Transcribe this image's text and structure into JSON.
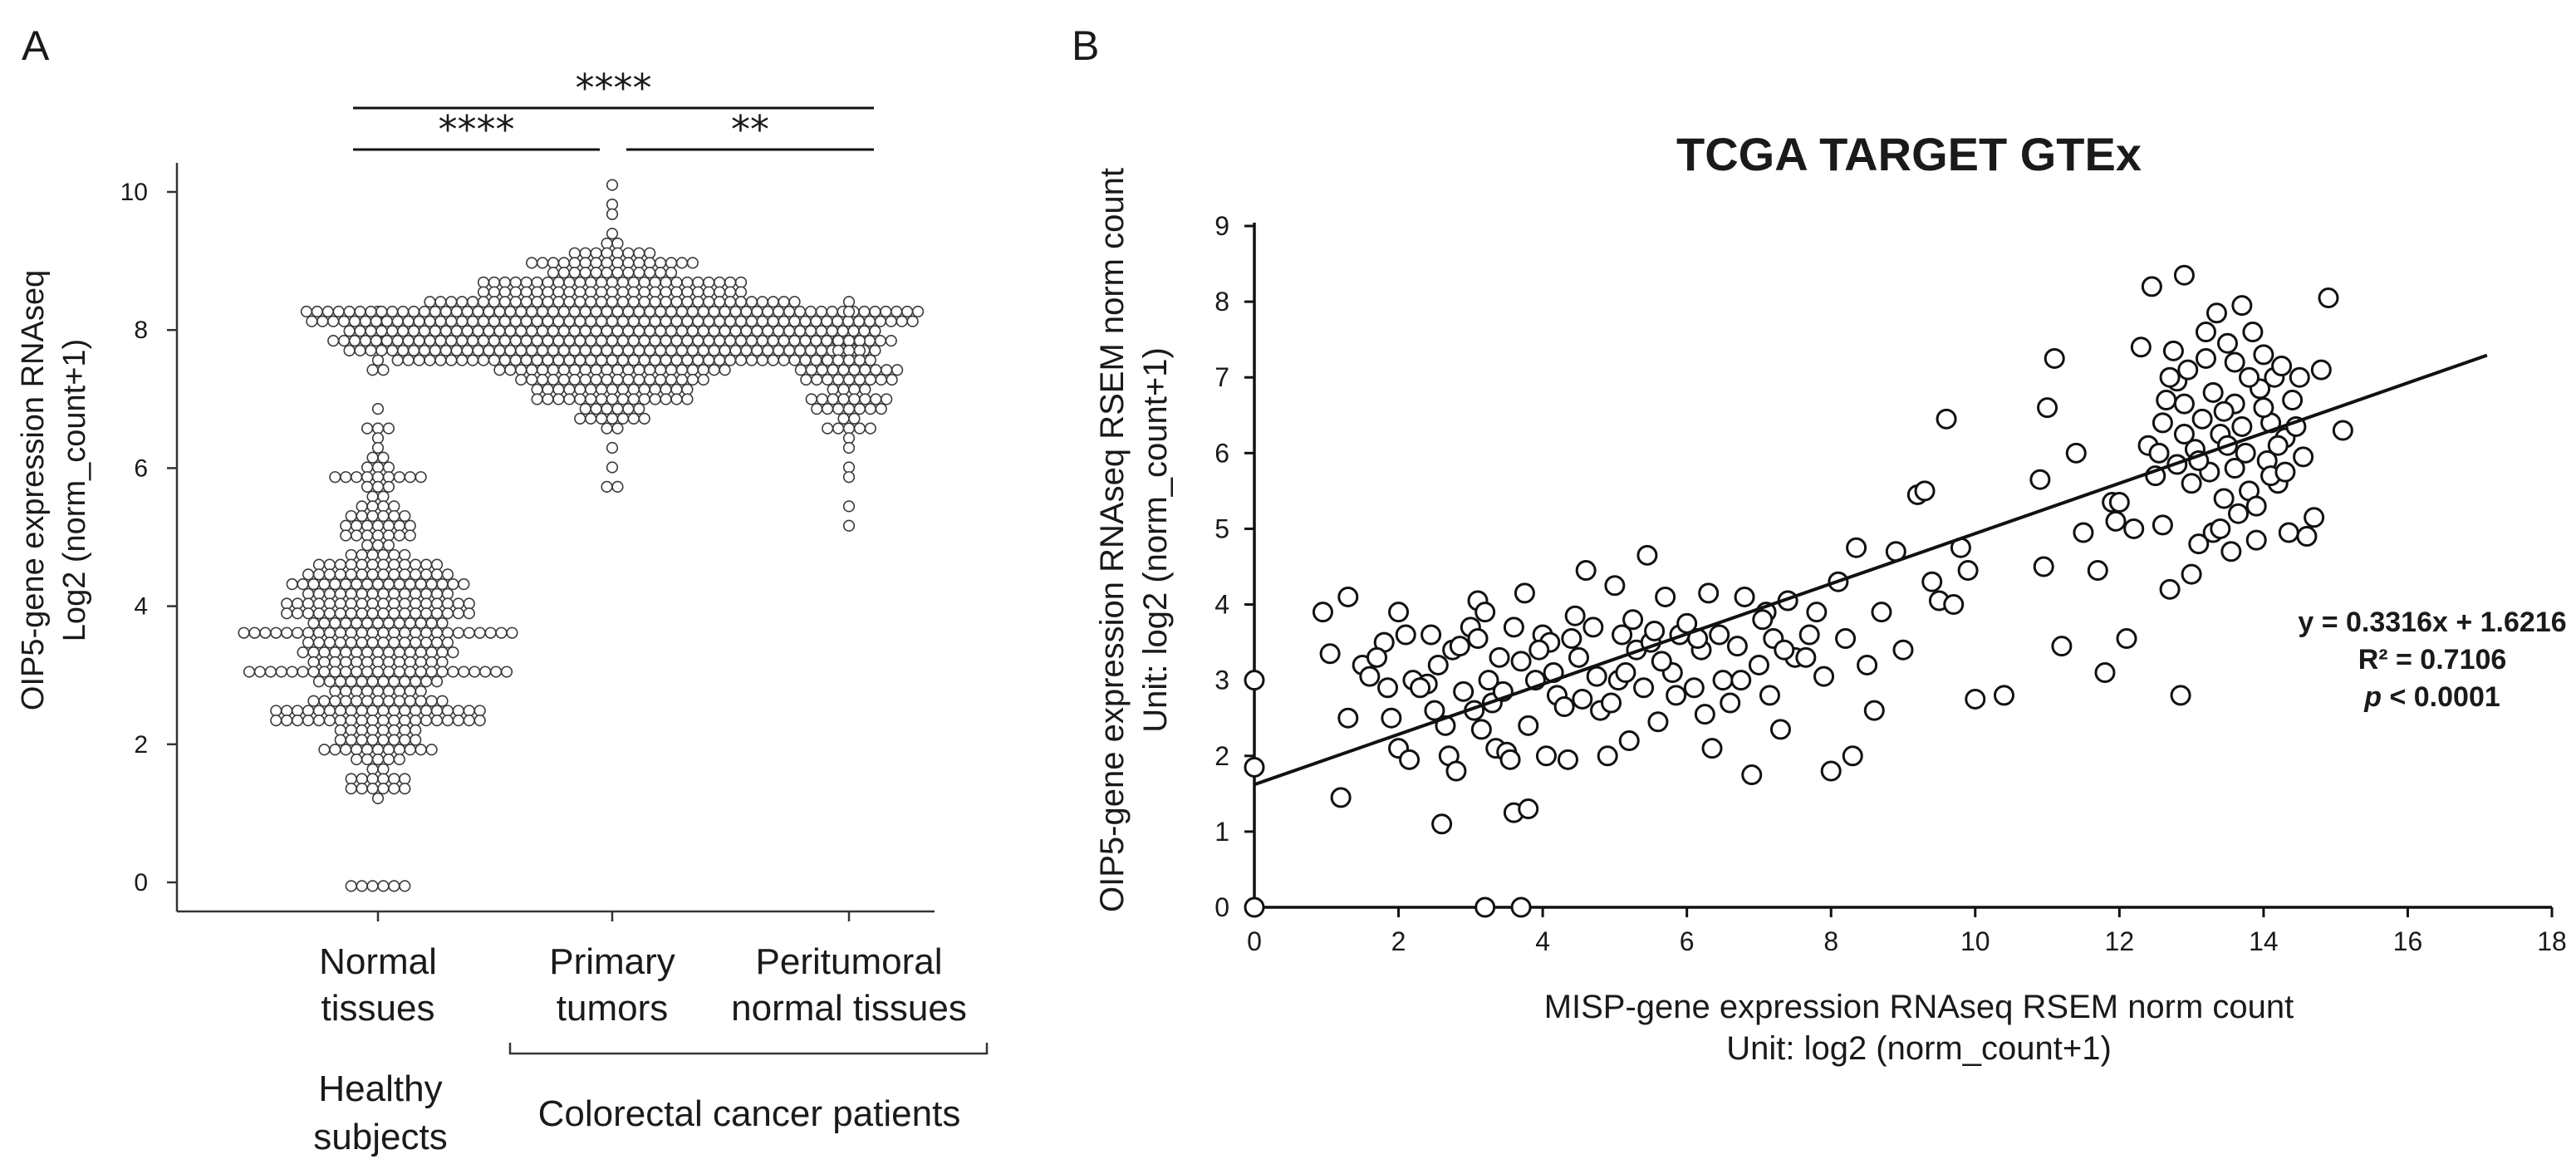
{
  "panels": {
    "a": {
      "letter": "A"
    },
    "b": {
      "letter": "B"
    }
  },
  "chart_data": [
    {
      "type": "scatter",
      "subtype": "beeswarm",
      "ylabel_line1": "OIP5-gene expression RNAseq",
      "ylabel_line2": "Log2 (norm_count+1)",
      "ylim": [
        0,
        10
      ],
      "yticks": [
        "0",
        "2",
        "4",
        "6",
        "8",
        "10"
      ],
      "categories": [
        {
          "line1": "Normal",
          "line2": "tissues"
        },
        {
          "line1": "Primary",
          "line2": "tumors"
        },
        {
          "line1": "Peritumoral",
          "line2": "normal tissues"
        }
      ],
      "groups": [
        {
          "line1": "Healthy",
          "line2": "subjects"
        },
        {
          "label": "Colorectal cancer patients"
        }
      ],
      "significance": [
        {
          "from": 0,
          "to": 1,
          "label": "****"
        },
        {
          "from": 1,
          "to": 2,
          "label": "**"
        },
        {
          "from": 0,
          "to": 2,
          "label": "****"
        }
      ],
      "series": [
        {
          "name": "Normal tissues",
          "min": 0,
          "max": 8.3,
          "median": 3.5,
          "zeros": 6
        },
        {
          "name": "Primary tumors",
          "min": 5.7,
          "max": 10.1,
          "median": 8.0
        },
        {
          "name": "Peritumoral normal tissues",
          "min": 5.1,
          "max": 8.4,
          "median": 7.2
        }
      ]
    },
    {
      "type": "scatter",
      "title": "TCGA TARGET GTEx",
      "xlabel_line1": "MISP-gene expression RNAseq RSEM norm count",
      "xlabel_line2": "Unit: log2 (norm_count+1)",
      "ylabel_line1": "OIP5-gene expression RNAseq RSEM norm count",
      "ylabel_line2": "Unit: log2 (norm_count+1)",
      "xlim": [
        0,
        18
      ],
      "ylim": [
        0,
        9
      ],
      "xticks": [
        "0",
        "2",
        "4",
        "6",
        "8",
        "10",
        "12",
        "14",
        "16",
        "18"
      ],
      "yticks": [
        "0",
        "1",
        "2",
        "3",
        "4",
        "5",
        "6",
        "7",
        "8",
        "9"
      ],
      "trendline": {
        "slope": 0.3316,
        "intercept": 1.6216,
        "x_end": 17.1
      },
      "equation": "y = 0.3316x + 1.6216",
      "r2": "R² = 0.7106",
      "p_label": "p",
      "p_value": " < 0.0001",
      "points": [
        [
          0,
          3.0
        ],
        [
          0,
          1.85
        ],
        [
          0,
          0
        ],
        [
          3.2,
          0
        ],
        [
          3.7,
          0
        ],
        [
          0.95,
          3.9
        ],
        [
          1.3,
          4.1
        ],
        [
          1.05,
          3.35
        ],
        [
          1.2,
          1.45
        ],
        [
          1.3,
          2.5
        ],
        [
          1.5,
          3.2
        ],
        [
          1.6,
          3.05
        ],
        [
          1.8,
          3.5
        ],
        [
          1.7,
          3.3
        ],
        [
          1.9,
          2.5
        ],
        [
          2.0,
          3.9
        ],
        [
          2.1,
          3.6
        ],
        [
          2.2,
          3.0
        ],
        [
          2.0,
          2.1
        ],
        [
          2.15,
          1.95
        ],
        [
          2.4,
          2.95
        ],
        [
          2.5,
          2.6
        ],
        [
          2.6,
          1.1
        ],
        [
          2.55,
          3.2
        ],
        [
          2.7,
          2.0
        ],
        [
          2.75,
          3.4
        ],
        [
          2.9,
          2.85
        ],
        [
          2.8,
          1.8
        ],
        [
          3.0,
          3.7
        ],
        [
          3.1,
          3.55
        ],
        [
          3.1,
          4.05
        ],
        [
          3.2,
          3.9
        ],
        [
          3.25,
          3.0
        ],
        [
          3.3,
          2.7
        ],
        [
          3.35,
          2.1
        ],
        [
          3.4,
          3.3
        ],
        [
          3.5,
          2.05
        ],
        [
          3.55,
          1.95
        ],
        [
          3.6,
          3.7
        ],
        [
          3.7,
          3.25
        ],
        [
          3.6,
          1.25
        ],
        [
          3.8,
          1.3
        ],
        [
          3.8,
          2.4
        ],
        [
          3.9,
          3.0
        ],
        [
          4.0,
          3.6
        ],
        [
          4.1,
          3.5
        ],
        [
          4.2,
          2.8
        ],
        [
          4.3,
          2.65
        ],
        [
          4.35,
          1.95
        ],
        [
          4.45,
          3.85
        ],
        [
          4.5,
          3.3
        ],
        [
          4.6,
          4.45
        ],
        [
          4.7,
          3.7
        ],
        [
          4.8,
          2.6
        ],
        [
          4.9,
          2.0
        ],
        [
          5.0,
          4.25
        ],
        [
          5.1,
          3.6
        ],
        [
          5.2,
          2.2
        ],
        [
          5.3,
          3.4
        ],
        [
          5.4,
          2.9
        ],
        [
          5.45,
          4.65
        ],
        [
          5.5,
          3.5
        ],
        [
          5.6,
          2.45
        ],
        [
          5.7,
          4.1
        ],
        [
          5.8,
          3.1
        ],
        [
          5.9,
          3.6
        ],
        [
          6.0,
          3.75
        ],
        [
          6.1,
          2.9
        ],
        [
          6.2,
          3.4
        ],
        [
          6.3,
          4.15
        ],
        [
          6.35,
          2.1
        ],
        [
          6.5,
          3.0
        ],
        [
          6.6,
          2.7
        ],
        [
          6.7,
          3.45
        ],
        [
          6.8,
          4.1
        ],
        [
          6.9,
          1.75
        ],
        [
          7.0,
          3.2
        ],
        [
          7.1,
          3.9
        ],
        [
          7.2,
          3.55
        ],
        [
          7.3,
          2.35
        ],
        [
          7.4,
          4.05
        ],
        [
          7.5,
          3.3
        ],
        [
          7.7,
          3.6
        ],
        [
          7.8,
          3.9
        ],
        [
          7.9,
          3.05
        ],
        [
          8.0,
          1.8
        ],
        [
          8.1,
          4.3
        ],
        [
          8.2,
          3.55
        ],
        [
          8.3,
          2.0
        ],
        [
          8.35,
          4.75
        ],
        [
          8.5,
          3.2
        ],
        [
          8.6,
          2.6
        ],
        [
          8.7,
          3.9
        ],
        [
          8.9,
          4.7
        ],
        [
          9.0,
          3.4
        ],
        [
          9.2,
          5.45
        ],
        [
          9.3,
          5.5
        ],
        [
          9.4,
          4.3
        ],
        [
          9.5,
          4.05
        ],
        [
          9.6,
          6.45
        ],
        [
          9.7,
          4.0
        ],
        [
          9.8,
          4.75
        ],
        [
          9.9,
          4.45
        ],
        [
          10.0,
          2.75
        ],
        [
          10.4,
          2.8
        ],
        [
          10.9,
          5.65
        ],
        [
          10.95,
          4.5
        ],
        [
          11.0,
          6.6
        ],
        [
          11.1,
          7.25
        ],
        [
          11.2,
          3.45
        ],
        [
          11.4,
          6.0
        ],
        [
          11.5,
          4.95
        ],
        [
          11.7,
          4.45
        ],
        [
          11.8,
          3.1
        ],
        [
          11.9,
          5.35
        ],
        [
          11.95,
          5.1
        ],
        [
          12.0,
          5.35
        ],
        [
          12.1,
          3.55
        ],
        [
          12.2,
          5.0
        ],
        [
          12.3,
          7.4
        ],
        [
          12.4,
          6.1
        ],
        [
          12.45,
          8.2
        ],
        [
          12.5,
          5.7
        ],
        [
          12.6,
          5.05
        ],
        [
          12.65,
          6.7
        ],
        [
          12.7,
          4.2
        ],
        [
          12.75,
          7.35
        ],
        [
          12.8,
          6.95
        ],
        [
          12.85,
          2.8
        ],
        [
          12.9,
          8.35
        ],
        [
          12.95,
          7.1
        ],
        [
          13.0,
          4.4
        ],
        [
          13.05,
          6.05
        ],
        [
          13.1,
          4.8
        ],
        [
          13.15,
          6.45
        ],
        [
          13.2,
          7.25
        ],
        [
          13.25,
          5.75
        ],
        [
          13.3,
          4.95
        ],
        [
          13.35,
          7.85
        ],
        [
          13.4,
          6.25
        ],
        [
          13.45,
          5.4
        ],
        [
          13.5,
          7.45
        ],
        [
          13.55,
          4.7
        ],
        [
          13.6,
          6.65
        ],
        [
          13.65,
          5.2
        ],
        [
          13.7,
          7.95
        ],
        [
          13.75,
          6.0
        ],
        [
          13.8,
          5.5
        ],
        [
          13.85,
          7.6
        ],
        [
          13.9,
          4.85
        ],
        [
          13.95,
          6.85
        ],
        [
          14.0,
          7.3
        ],
        [
          14.05,
          5.9
        ],
        [
          14.1,
          6.4
        ],
        [
          14.15,
          7.0
        ],
        [
          14.2,
          5.6
        ],
        [
          14.25,
          7.15
        ],
        [
          14.3,
          6.2
        ],
        [
          14.35,
          4.95
        ],
        [
          14.4,
          6.7
        ],
        [
          14.5,
          7.0
        ],
        [
          14.55,
          5.95
        ],
        [
          14.6,
          4.9
        ],
        [
          14.7,
          5.15
        ],
        [
          14.8,
          7.1
        ],
        [
          14.9,
          8.05
        ],
        [
          15.1,
          6.3
        ],
        [
          12.55,
          6.0
        ],
        [
          13.0,
          5.6
        ],
        [
          13.4,
          5.0
        ],
        [
          12.9,
          6.65
        ],
        [
          13.6,
          5.8
        ],
        [
          13.2,
          7.6
        ],
        [
          14.0,
          6.6
        ],
        [
          13.7,
          6.35
        ],
        [
          12.8,
          5.85
        ],
        [
          13.5,
          6.1
        ],
        [
          14.2,
          6.1
        ],
        [
          13.9,
          5.3
        ],
        [
          12.7,
          7.0
        ],
        [
          13.3,
          6.8
        ],
        [
          14.1,
          5.7
        ],
        [
          13.8,
          7.0
        ],
        [
          12.6,
          6.4
        ],
        [
          13.1,
          5.9
        ],
        [
          14.3,
          5.75
        ],
        [
          13.6,
          7.2
        ],
        [
          12.9,
          6.25
        ],
        [
          13.45,
          6.55
        ],
        [
          14.45,
          6.35
        ],
        [
          2.3,
          2.9
        ],
        [
          2.85,
          3.45
        ],
        [
          3.05,
          2.6
        ],
        [
          3.45,
          2.85
        ],
        [
          3.95,
          3.4
        ],
        [
          4.15,
          3.1
        ],
        [
          4.55,
          2.75
        ],
        [
          4.75,
          3.05
        ],
        [
          5.05,
          3.0
        ],
        [
          5.25,
          3.8
        ],
        [
          5.65,
          3.25
        ],
        [
          5.85,
          2.8
        ],
        [
          6.15,
          3.55
        ],
        [
          6.45,
          3.6
        ],
        [
          6.75,
          3.0
        ],
        [
          7.05,
          3.8
        ],
        [
          7.35,
          3.4
        ],
        [
          7.65,
          3.3
        ],
        [
          2.45,
          3.6
        ],
        [
          3.15,
          2.35
        ],
        [
          4.05,
          2.0
        ],
        [
          4.95,
          2.7
        ],
        [
          5.55,
          3.65
        ],
        [
          6.25,
          2.55
        ],
        [
          7.15,
          2.8
        ],
        [
          1.85,
          2.9
        ],
        [
          2.65,
          2.4
        ],
        [
          3.75,
          4.15
        ],
        [
          4.4,
          3.55
        ],
        [
          5.15,
          3.1
        ]
      ]
    }
  ]
}
